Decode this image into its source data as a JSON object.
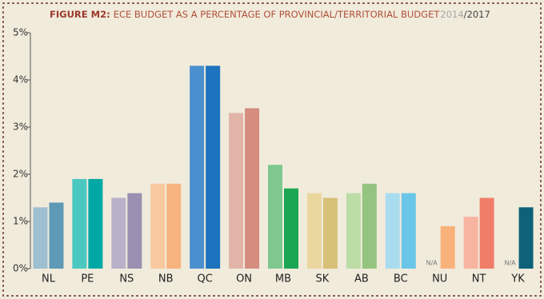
{
  "chart_data": {
    "type": "bar",
    "title_prefix": "FIGURE M2:",
    "title": "ECE BUDGET AS A PERCENTAGE OF PROVINCIAL/TERRITORIAL BUDGET",
    "legend_separator": "/",
    "categories": [
      "NL",
      "PE",
      "NS",
      "NB",
      "QC",
      "ON",
      "MB",
      "SK",
      "AB",
      "BC",
      "NU",
      "NT",
      "YK"
    ],
    "series": [
      {
        "name": "2014",
        "color": "#a8a8a8",
        "colors": [
          "#9dbfd0",
          "#4bc8c0",
          "#b9b0c9",
          "#f8c89e",
          "#4a90cf",
          "#e2b4a8",
          "#7ec88f",
          "#ead79f",
          "#bcdca6",
          "#a9dcef",
          "#f9b27a",
          "#f7b4a0",
          "#0d6279"
        ],
        "values": [
          1.3,
          1.9,
          1.5,
          1.8,
          4.3,
          3.3,
          2.2,
          1.6,
          1.6,
          1.6,
          null,
          1.1,
          null
        ],
        "value_labels": [
          null,
          null,
          null,
          null,
          null,
          null,
          null,
          null,
          null,
          null,
          "N/A",
          null,
          "N/A"
        ]
      },
      {
        "name": "2017",
        "color": "#444444",
        "colors": [
          "#5e9ab5",
          "#00a9a5",
          "#9a8fb0",
          "#f7b47f",
          "#1d73bd",
          "#d48d7f",
          "#1aa652",
          "#d7c078",
          "#95c480",
          "#6ac6e8",
          "#f9b27a",
          "#f07d68",
          "#0d6279"
        ],
        "values": [
          1.4,
          1.9,
          1.6,
          1.8,
          4.3,
          3.4,
          1.7,
          1.5,
          1.8,
          1.6,
          0.9,
          1.5,
          1.3
        ]
      }
    ],
    "ylim": [
      0,
      5
    ],
    "yticks": [
      {
        "value": 0,
        "label": "0%"
      },
      {
        "value": 1,
        "label": "1%"
      },
      {
        "value": 2,
        "label": "2%"
      },
      {
        "value": 3,
        "label": "3%"
      },
      {
        "value": 4,
        "label": "4%"
      },
      {
        "value": 5,
        "label": "5%"
      }
    ]
  }
}
